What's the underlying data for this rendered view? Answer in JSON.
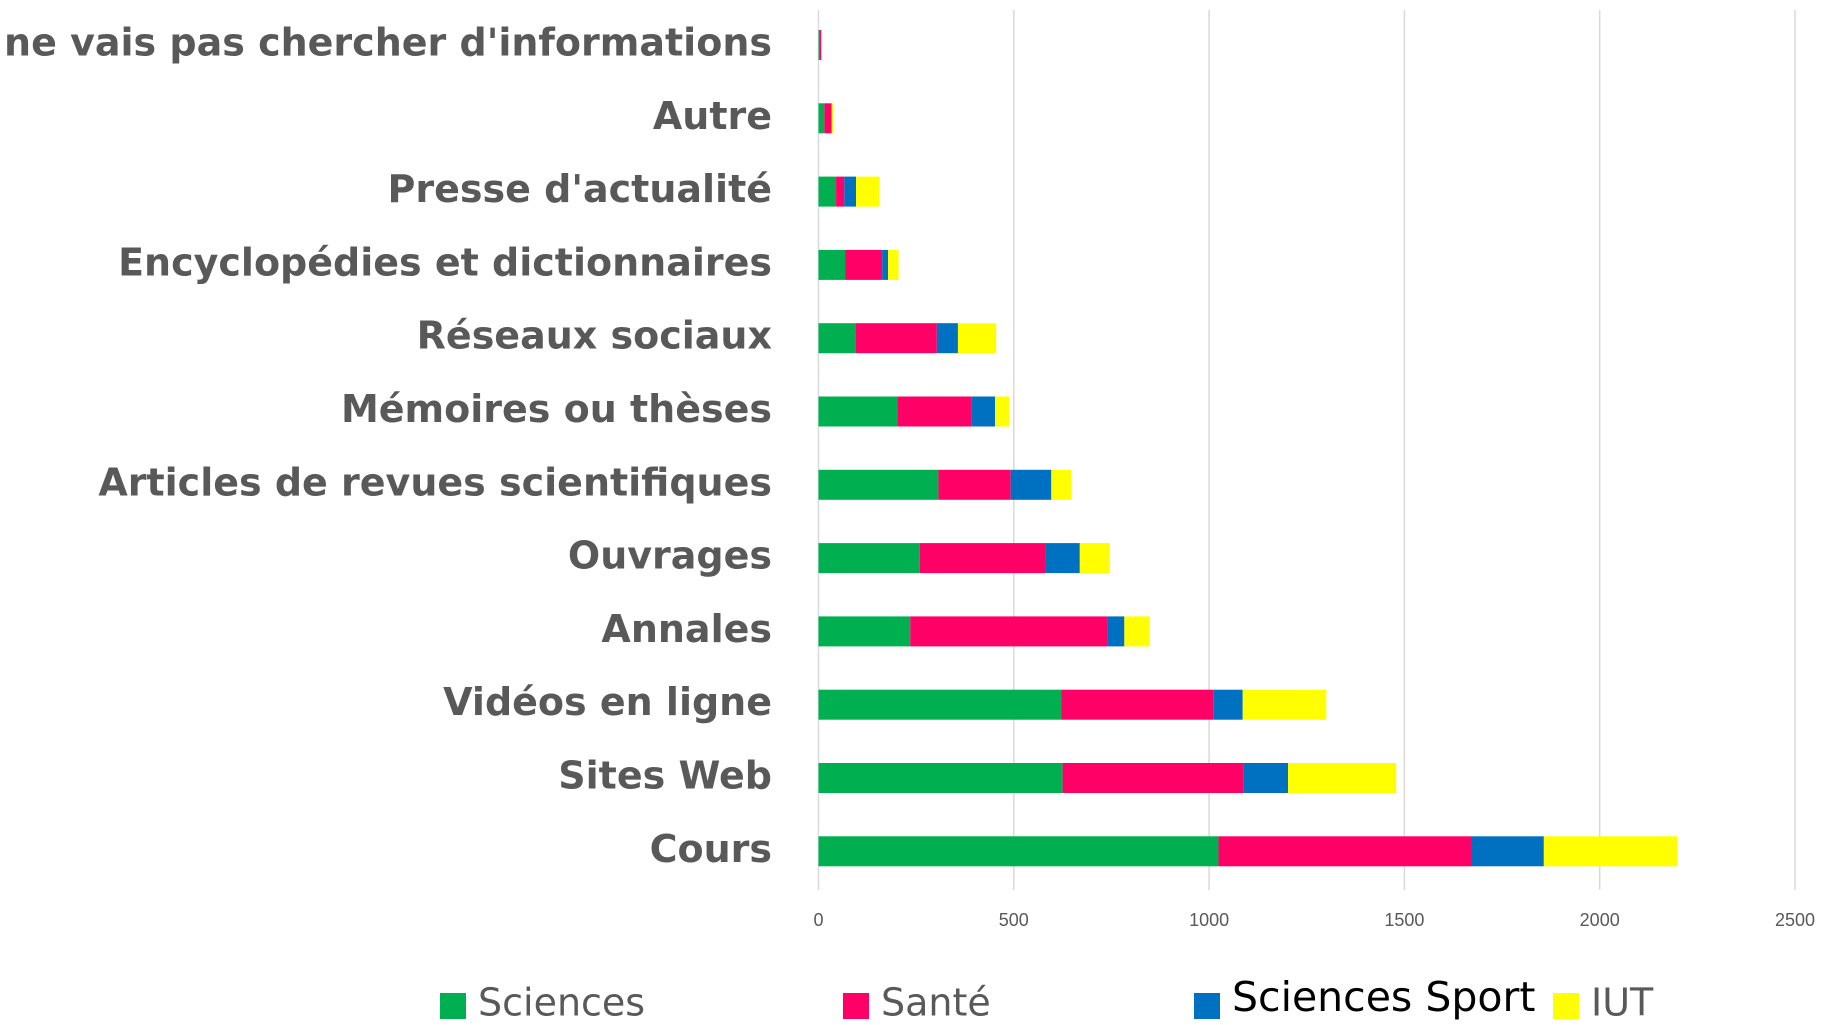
{
  "chart_data": {
    "type": "stacked_barh",
    "categories": [
      "Je ne vais pas chercher d'informations",
      "Autre",
      "Presse d'actualité",
      "Encyclopédies et dictionnaires",
      "Réseaux sociaux",
      "Mémoires ou thèses",
      "Articles de revues scientifiques",
      "Ouvrages",
      "Annales",
      "Vidéos en ligne",
      "Sites Web",
      "Cours"
    ],
    "series": [
      {
        "name": "Sciences",
        "color": "#00b050",
        "values": [
          2,
          15,
          45,
          68,
          95,
          202,
          307,
          259,
          235,
          622,
          625,
          1024
        ]
      },
      {
        "name": "Santé",
        "color": "#ff0066",
        "values": [
          5,
          18,
          21,
          95,
          208,
          190,
          185,
          321,
          506,
          390,
          464,
          649
        ]
      },
      {
        "name": "Sciences Sport",
        "color": "#0070c0",
        "values": [
          0,
          1,
          30,
          15,
          54,
          60,
          104,
          89,
          42,
          74,
          113,
          184
        ]
      },
      {
        "name": "IUT",
        "color": "#ffff00",
        "values": [
          0,
          3,
          60,
          27,
          98,
          36,
          51,
          77,
          65,
          214,
          277,
          342
        ]
      }
    ],
    "xlim": [
      0,
      2500
    ],
    "xticks": [
      0,
      500,
      1000,
      1500,
      2000,
      2500
    ],
    "grid": true,
    "legend": "bottom"
  }
}
